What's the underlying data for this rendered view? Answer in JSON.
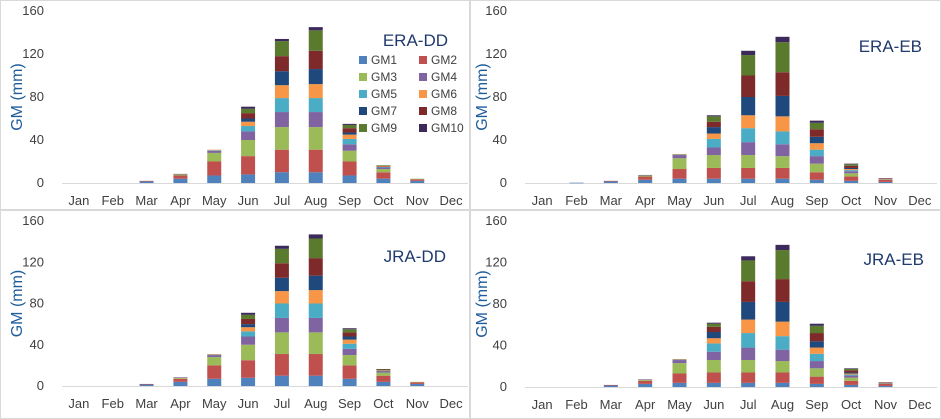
{
  "chart_data": [
    {
      "type": "bar",
      "stacked": true,
      "title": "ERA-DD",
      "ylabel": "GM (mm)",
      "xlabel": "",
      "ylim": [
        0,
        160
      ],
      "yticks": [
        0,
        40,
        80,
        120,
        160
      ],
      "categories": [
        "Jan",
        "Feb",
        "Mar",
        "Apr",
        "May",
        "Jun",
        "Jul",
        "Aug",
        "Sep",
        "Oct",
        "Nov",
        "Dec"
      ],
      "legend": "top-right",
      "series": [
        {
          "name": "GM1",
          "color": "#4f81bd",
          "values": [
            0,
            0,
            1.5,
            4,
            7,
            8,
            10,
            10,
            7,
            4,
            2,
            0
          ]
        },
        {
          "name": "GM2",
          "color": "#c0504d",
          "values": [
            0,
            0,
            0.5,
            3,
            13,
            17,
            21,
            21,
            13,
            6,
            1.5,
            0
          ]
        },
        {
          "name": "GM3",
          "color": "#9bbb59",
          "values": [
            0,
            0,
            0,
            1,
            8,
            15,
            21,
            21,
            10,
            3,
            0.5,
            0
          ]
        },
        {
          "name": "GM4",
          "color": "#8064a2",
          "values": [
            0,
            0,
            0,
            0.5,
            2,
            8,
            14,
            14,
            6,
            1.5,
            0,
            0
          ]
        },
        {
          "name": "GM5",
          "color": "#4bacc6",
          "values": [
            0,
            0,
            0,
            0,
            0.5,
            5,
            13,
            13,
            5,
            0.5,
            0,
            0
          ]
        },
        {
          "name": "GM6",
          "color": "#f79646",
          "values": [
            0,
            0,
            0,
            0,
            0.5,
            4,
            12,
            13,
            4,
            0.5,
            0,
            0
          ]
        },
        {
          "name": "GM7",
          "color": "#1f497d",
          "values": [
            0,
            0,
            0,
            0,
            0,
            3,
            13,
            14,
            2,
            0,
            0,
            0
          ]
        },
        {
          "name": "GM8",
          "color": "#7f2a2a",
          "values": [
            0,
            0,
            0,
            0,
            0,
            5,
            14,
            17,
            4,
            0.5,
            0,
            0
          ]
        },
        {
          "name": "GM9",
          "color": "#5a7a2e",
          "values": [
            0,
            0,
            0,
            0,
            0,
            4,
            14,
            19,
            3,
            0.5,
            0,
            0
          ]
        },
        {
          "name": "GM10",
          "color": "#3d2a5c",
          "values": [
            0,
            0,
            0,
            0,
            0,
            2,
            2,
            3,
            1,
            0,
            0,
            0
          ]
        }
      ]
    },
    {
      "type": "bar",
      "stacked": true,
      "title": "ERA-EB",
      "ylabel": "GM (mm)",
      "xlabel": "",
      "ylim": [
        0,
        160
      ],
      "yticks": [
        0,
        40,
        80,
        120,
        160
      ],
      "categories": [
        "Jan",
        "Feb",
        "Mar",
        "Apr",
        "May",
        "Jun",
        "Jul",
        "Aug",
        "Sep",
        "Oct",
        "Nov",
        "Dec"
      ],
      "series": [
        {
          "name": "GM1",
          "color": "#4f81bd",
          "values": [
            0,
            0.3,
            1.5,
            3,
            4,
            4,
            4,
            4,
            3,
            2,
            1,
            0
          ]
        },
        {
          "name": "GM2",
          "color": "#c0504d",
          "values": [
            0,
            0,
            0.5,
            3,
            9,
            10,
            10,
            10,
            7,
            4,
            2,
            0
          ]
        },
        {
          "name": "GM3",
          "color": "#9bbb59",
          "values": [
            0,
            0,
            0,
            1,
            10,
            12,
            12,
            11,
            8,
            3,
            0.5,
            0
          ]
        },
        {
          "name": "GM4",
          "color": "#8064a2",
          "values": [
            0,
            0,
            0,
            0.5,
            3,
            7,
            12,
            11,
            7,
            2,
            0.5,
            0
          ]
        },
        {
          "name": "GM5",
          "color": "#4bacc6",
          "values": [
            0,
            0,
            0,
            0,
            0.5,
            8,
            13,
            12,
            6,
            1,
            0,
            0
          ]
        },
        {
          "name": "GM6",
          "color": "#f79646",
          "values": [
            0,
            0,
            0,
            0,
            0.5,
            5,
            12,
            14,
            6,
            1,
            0,
            0
          ]
        },
        {
          "name": "GM7",
          "color": "#1f497d",
          "values": [
            0,
            0,
            0,
            0,
            0,
            6,
            17,
            19,
            6,
            1,
            0,
            0
          ]
        },
        {
          "name": "GM8",
          "color": "#7f2a2a",
          "values": [
            0,
            0,
            0,
            0,
            0,
            5,
            20,
            22,
            7,
            2,
            0.5,
            0
          ]
        },
        {
          "name": "GM9",
          "color": "#5a7a2e",
          "values": [
            0,
            0,
            0,
            0,
            0,
            5,
            19,
            28,
            6,
            1.5,
            0,
            0
          ]
        },
        {
          "name": "GM10",
          "color": "#3d2a5c",
          "values": [
            0,
            0,
            0,
            0,
            0,
            1,
            4,
            5,
            2,
            0.5,
            0,
            0
          ]
        }
      ]
    },
    {
      "type": "bar",
      "stacked": true,
      "title": "JRA-DD",
      "ylabel": "GM (mm)",
      "xlabel": "",
      "ylim": [
        0,
        160
      ],
      "yticks": [
        0,
        40,
        80,
        120,
        160
      ],
      "categories": [
        "Jan",
        "Feb",
        "Mar",
        "Apr",
        "May",
        "Jun",
        "Jul",
        "Aug",
        "Sep",
        "Oct",
        "Nov",
        "Dec"
      ],
      "series": [
        {
          "name": "GM1",
          "color": "#4f81bd",
          "values": [
            0,
            0,
            1.5,
            4,
            7,
            8,
            10,
            10,
            7,
            4,
            2,
            0
          ]
        },
        {
          "name": "GM2",
          "color": "#c0504d",
          "values": [
            0,
            0,
            0.5,
            3,
            13,
            17,
            21,
            21,
            13,
            6,
            1.5,
            0
          ]
        },
        {
          "name": "GM3",
          "color": "#9bbb59",
          "values": [
            0,
            0,
            0,
            1,
            8,
            15,
            21,
            21,
            10,
            3,
            0.5,
            0
          ]
        },
        {
          "name": "GM4",
          "color": "#8064a2",
          "values": [
            0,
            0,
            0,
            0.5,
            2,
            8,
            14,
            14,
            6,
            1.5,
            0,
            0
          ]
        },
        {
          "name": "GM5",
          "color": "#4bacc6",
          "values": [
            0,
            0,
            0,
            0,
            0.5,
            5,
            14,
            14,
            5,
            0.5,
            0,
            0
          ]
        },
        {
          "name": "GM6",
          "color": "#f79646",
          "values": [
            0,
            0,
            0,
            0,
            0.5,
            4,
            12,
            13,
            4,
            0.5,
            0,
            0
          ]
        },
        {
          "name": "GM7",
          "color": "#1f497d",
          "values": [
            0,
            0,
            0,
            0,
            0,
            3,
            13,
            14,
            3,
            0,
            0,
            0
          ]
        },
        {
          "name": "GM8",
          "color": "#7f2a2a",
          "values": [
            0,
            0,
            0,
            0,
            0,
            5,
            14,
            17,
            4,
            0.5,
            0,
            0
          ]
        },
        {
          "name": "GM9",
          "color": "#5a7a2e",
          "values": [
            0,
            0,
            0,
            0,
            0,
            4,
            14,
            19,
            3,
            0.5,
            0,
            0
          ]
        },
        {
          "name": "GM10",
          "color": "#3d2a5c",
          "values": [
            0,
            0,
            0,
            0,
            0,
            2,
            3,
            4,
            1,
            0,
            0,
            0
          ]
        }
      ]
    },
    {
      "type": "bar",
      "stacked": true,
      "title": "JRA-EB",
      "ylabel": "GM (mm)",
      "xlabel": "",
      "ylim": [
        0,
        160
      ],
      "yticks": [
        0,
        40,
        80,
        120,
        160
      ],
      "categories": [
        "Jan",
        "Feb",
        "Mar",
        "Apr",
        "May",
        "Jun",
        "Jul",
        "Aug",
        "Sep",
        "Oct",
        "Nov",
        "Dec"
      ],
      "series": [
        {
          "name": "GM1",
          "color": "#4f81bd",
          "values": [
            0,
            0,
            1.5,
            3,
            4,
            4,
            4,
            4,
            3,
            2,
            1,
            0
          ]
        },
        {
          "name": "GM2",
          "color": "#c0504d",
          "values": [
            0,
            0,
            0.5,
            3,
            9,
            10,
            10,
            10,
            7,
            4,
            2,
            0
          ]
        },
        {
          "name": "GM3",
          "color": "#9bbb59",
          "values": [
            0,
            0,
            0,
            1,
            10,
            12,
            12,
            11,
            8,
            3,
            0.5,
            0
          ]
        },
        {
          "name": "GM4",
          "color": "#8064a2",
          "values": [
            0,
            0,
            0,
            0.5,
            3,
            8,
            12,
            11,
            7,
            2,
            0.5,
            0
          ]
        },
        {
          "name": "GM5",
          "color": "#4bacc6",
          "values": [
            0,
            0,
            0,
            0,
            0.5,
            8,
            14,
            13,
            7,
            1,
            0,
            0
          ]
        },
        {
          "name": "GM6",
          "color": "#f79646",
          "values": [
            0,
            0,
            0,
            0,
            0.5,
            5,
            13,
            14,
            6,
            1,
            0,
            0
          ]
        },
        {
          "name": "GM7",
          "color": "#1f497d",
          "values": [
            0,
            0,
            0,
            0,
            0,
            6,
            17,
            19,
            6,
            1,
            0,
            0
          ]
        },
        {
          "name": "GM8",
          "color": "#7f2a2a",
          "values": [
            0,
            0,
            0,
            0,
            0,
            5,
            20,
            22,
            8,
            2,
            0.5,
            0
          ]
        },
        {
          "name": "GM9",
          "color": "#5a7a2e",
          "values": [
            0,
            0,
            0,
            0,
            0,
            3,
            20,
            28,
            7,
            1.5,
            0,
            0
          ]
        },
        {
          "name": "GM10",
          "color": "#3d2a5c",
          "values": [
            0,
            0,
            0,
            0,
            0,
            1,
            4,
            5,
            2,
            0.5,
            0,
            0
          ]
        }
      ]
    }
  ]
}
